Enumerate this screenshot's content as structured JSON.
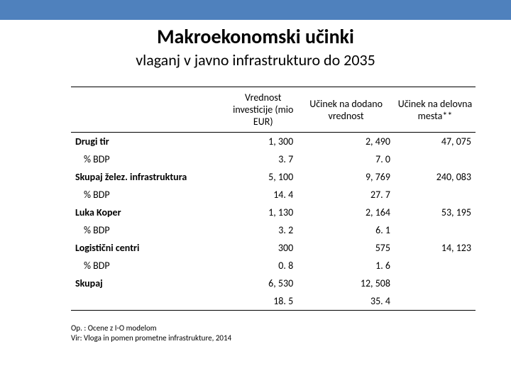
{
  "header": {
    "title": "Makroekonomski učinki",
    "subtitle": "vlaganj v javno infrastrukturo do 2035"
  },
  "table": {
    "columns": [
      "",
      "Vrednost investicije (mio EUR)",
      "Učinek na dodano vrednost",
      "Učinek na delovna mesta**"
    ],
    "rows": [
      {
        "label": "Drugi tir",
        "v1": "1, 300",
        "v2": "2, 490",
        "v3": "47, 075",
        "bold": true
      },
      {
        "label": "% BDP",
        "v1": "3. 7",
        "v2": "7. 0",
        "v3": "",
        "indent": true
      },
      {
        "label": "Skupaj želez. infrastruktura",
        "v1": "5, 100",
        "v2": "9, 769",
        "v3": "240, 083",
        "bold": true
      },
      {
        "label": "% BDP",
        "v1": "14. 4",
        "v2": "27. 7",
        "v3": "",
        "indent": true
      },
      {
        "label": "Luka Koper",
        "v1": "1, 130",
        "v2": "2, 164",
        "v3": "53, 195",
        "bold": true
      },
      {
        "label": "% BDP",
        "v1": "3. 2",
        "v2": "6. 1",
        "v3": "",
        "indent": true
      },
      {
        "label": "Logistični centri",
        "v1": "300",
        "v2": "575",
        "v3": "14, 123",
        "bold": true
      },
      {
        "label": "% BDP",
        "v1": "0. 8",
        "v2": "1. 6",
        "v3": "",
        "indent": true
      },
      {
        "label": "Skupaj",
        "v1": "6, 530",
        "v2": "12, 508",
        "v3": "",
        "bold": true
      },
      {
        "label": "",
        "v1": "18. 5",
        "v2": "35. 4",
        "v3": "",
        "last": true
      }
    ]
  },
  "footnotes": {
    "line1": "Op. : Ocene z I-O modelom",
    "line2": "Vir: Vloga in pomen prometne infrastrukture, 2014"
  },
  "colors": {
    "accent": "#4f81bd",
    "text": "#000000",
    "background": "#ffffff",
    "rule": "#000000"
  }
}
